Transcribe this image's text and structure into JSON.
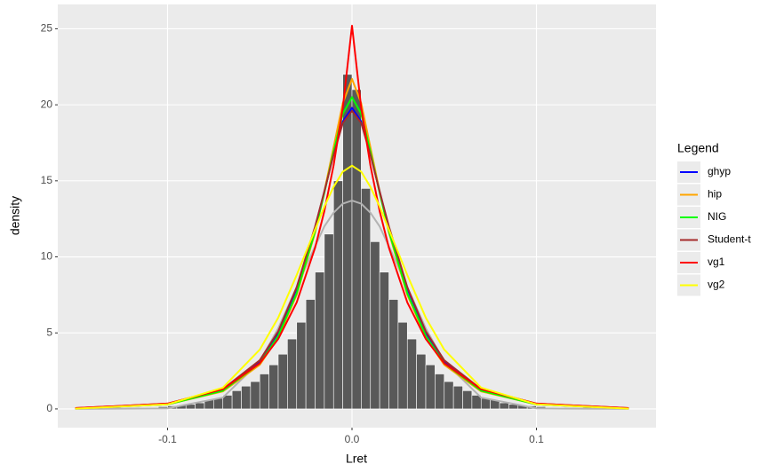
{
  "chart_data": {
    "type": "histogram",
    "xlabel": "Lret",
    "ylabel": "density",
    "legend_title": "Legend",
    "legend": "right",
    "grid": true,
    "color": "#595959",
    "xlim": [
      -0.1595,
      0.1648
    ],
    "ylim": [
      -1.23,
      26.6
    ],
    "xticks": [
      {
        "value": -0.1,
        "label": "-0.1"
      },
      {
        "value": 0,
        "label": "0.0"
      },
      {
        "value": 0.1,
        "label": "0.1"
      }
    ],
    "yticks": [
      0,
      5,
      10,
      15,
      20,
      25
    ],
    "bins": [
      -0.15,
      -0.145,
      -0.14,
      -0.135,
      -0.13,
      -0.125,
      -0.12,
      -0.115,
      -0.11,
      -0.105,
      -0.1,
      -0.095,
      -0.09,
      -0.085,
      -0.08,
      -0.075,
      -0.07,
      -0.065,
      -0.06,
      -0.055,
      -0.05,
      -0.045,
      -0.04,
      -0.035,
      -0.03,
      -0.025,
      -0.02,
      -0.015,
      -0.01,
      -0.005,
      0,
      0.005,
      0.01,
      0.015,
      0.02,
      0.025,
      0.03,
      0.035,
      0.04,
      0.045,
      0.05,
      0.055,
      0.06,
      0.065,
      0.07,
      0.075,
      0.08,
      0.085,
      0.09,
      0.095,
      0.1,
      0.105,
      0.11,
      0.115,
      0.12,
      0.125,
      0.13,
      0.135,
      0.14,
      0.145,
      0.15
    ],
    "counts": [
      0,
      0,
      0,
      0,
      0.1,
      0.05,
      0.05,
      0.1,
      0.1,
      0.15,
      0.2,
      0.25,
      0.3,
      0.4,
      0.6,
      0.7,
      0.9,
      1.2,
      1.5,
      1.8,
      2.3,
      2.9,
      3.6,
      4.6,
      5.7,
      7.2,
      9.0,
      11.5,
      15,
      22,
      21,
      14.5,
      11,
      9.0,
      7.2,
      5.7,
      4.6,
      3.6,
      2.9,
      2.3,
      1.8,
      1.5,
      1.2,
      0.9,
      0.7,
      0.6,
      0.4,
      0.3,
      0.25,
      0.2,
      0.15,
      0.1,
      0.1,
      0.05,
      0.05,
      0.1,
      0,
      0,
      0,
      0
    ],
    "lines": {
      "x": [
        -0.15,
        -0.1,
        -0.07,
        -0.05,
        -0.04,
        -0.03,
        -0.02,
        -0.015,
        -0.01,
        -0.005,
        0,
        0.005,
        0.01,
        0.015,
        0.02,
        0.03,
        0.04,
        0.05,
        0.07,
        0.1,
        0.15
      ],
      "series": [
        {
          "color": "#b3b3b3",
          "values": [
            0,
            0.04,
            0.75,
            3.1,
            5.3,
            8.0,
            10.7,
            12.0,
            12.9,
            13.5,
            13.7,
            13.5,
            12.9,
            12.0,
            10.7,
            8.0,
            5.3,
            3.1,
            0.75,
            0.04,
            0
          ]
        },
        {
          "name": "ghyp",
          "color": "#0000ff",
          "values": [
            0.03,
            0.3,
            1.2,
            3.1,
            5.0,
            7.9,
            11.9,
            14.3,
            16.8,
            18.9,
            19.8,
            18.9,
            16.8,
            14.3,
            11.9,
            7.9,
            5.0,
            3.1,
            1.2,
            0.3,
            0.03
          ]
        },
        {
          "name": "hip",
          "color": "#ffa500",
          "values": [
            0.04,
            0.3,
            1.15,
            2.9,
            4.7,
            7.5,
            11.6,
            14.3,
            17.2,
            20.1,
            21.7,
            20.1,
            17.2,
            14.3,
            11.6,
            7.5,
            4.7,
            2.9,
            1.15,
            0.3,
            0.04
          ]
        },
        {
          "name": "NIG",
          "color": "#00ff00",
          "values": [
            0.04,
            0.3,
            1.2,
            3.0,
            4.8,
            7.6,
            11.7,
            14.2,
            16.9,
            19.4,
            20.5,
            19.4,
            16.9,
            14.2,
            11.7,
            7.6,
            4.8,
            3.0,
            1.2,
            0.3,
            0.04
          ]
        },
        {
          "name": "Student-t",
          "color": "#a52a2a",
          "values": [
            0.05,
            0.35,
            1.3,
            3.2,
            5.1,
            8.0,
            12.0,
            14.3,
            16.7,
            18.8,
            19.6,
            18.8,
            16.7,
            14.3,
            12.0,
            8.0,
            5.1,
            3.2,
            1.3,
            0.35,
            0.05
          ]
        },
        {
          "name": "vg1",
          "color": "#ff0000",
          "values": [
            0.05,
            0.35,
            1.3,
            3.0,
            4.6,
            7.0,
            10.6,
            13.0,
            16.0,
            19.8,
            25.2,
            19.8,
            16.0,
            13.0,
            10.6,
            7.0,
            4.6,
            3.0,
            1.3,
            0.35,
            0.05
          ]
        },
        {
          "name": "vg2",
          "color": "#ffff00",
          "values": [
            0.02,
            0.3,
            1.4,
            3.9,
            6.0,
            8.8,
            11.8,
            13.3,
            14.6,
            15.6,
            16.0,
            15.6,
            14.6,
            13.3,
            11.8,
            8.8,
            6.0,
            3.9,
            1.4,
            0.3,
            0.02
          ]
        }
      ]
    }
  }
}
